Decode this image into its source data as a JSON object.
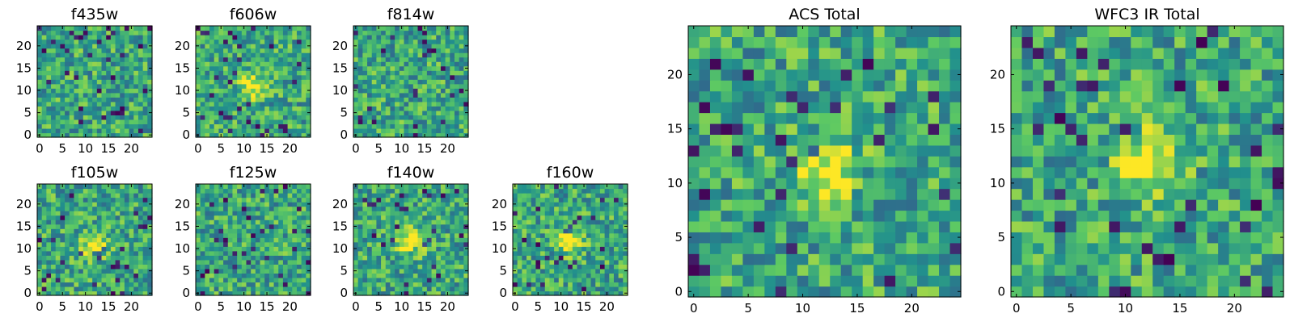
{
  "palette": [
    "#440154",
    "#3b528b",
    "#21908d",
    "#5dc963",
    "#fde725"
  ],
  "chart_data": [
    {
      "type": "heatmap",
      "title": "f435w",
      "x_ticks": [
        0,
        5,
        10,
        15,
        20
      ],
      "y_ticks": [
        0,
        5,
        10,
        15,
        20
      ],
      "xlim": [
        -0.5,
        24.5
      ],
      "ylim": [
        -0.5,
        24.5
      ],
      "grid": false,
      "grid_size": 25,
      "blob": null
    },
    {
      "type": "heatmap",
      "title": "f606w",
      "x_ticks": [
        0,
        5,
        10,
        15,
        20
      ],
      "y_ticks": [
        0,
        5,
        10,
        15,
        20
      ],
      "xlim": [
        -0.5,
        24.5
      ],
      "ylim": [
        -0.5,
        24.5
      ],
      "grid": false,
      "grid_size": 25,
      "blob": [
        12,
        11
      ]
    },
    {
      "type": "heatmap",
      "title": "f814w",
      "x_ticks": [
        0,
        5,
        10,
        15,
        20
      ],
      "y_ticks": [
        0,
        5,
        10,
        15,
        20
      ],
      "xlim": [
        -0.5,
        24.5
      ],
      "ylim": [
        -0.5,
        24.5
      ],
      "grid": false,
      "grid_size": 25,
      "blob": null
    },
    {
      "type": "heatmap",
      "title": "f105w",
      "x_ticks": [
        0,
        5,
        10,
        15,
        20
      ],
      "y_ticks": [
        0,
        5,
        10,
        15,
        20
      ],
      "xlim": [
        -0.5,
        24.5
      ],
      "ylim": [
        -0.5,
        24.5
      ],
      "grid": false,
      "grid_size": 25,
      "blob": [
        12,
        11
      ]
    },
    {
      "type": "heatmap",
      "title": "f125w",
      "x_ticks": [
        0,
        5,
        10,
        15,
        20
      ],
      "y_ticks": [
        0,
        5,
        10,
        15,
        20
      ],
      "xlim": [
        -0.5,
        24.5
      ],
      "ylim": [
        -0.5,
        24.5
      ],
      "grid": false,
      "grid_size": 25,
      "blob": null
    },
    {
      "type": "heatmap",
      "title": "f140w",
      "x_ticks": [
        0,
        5,
        10,
        15,
        20
      ],
      "y_ticks": [
        0,
        5,
        10,
        15,
        20
      ],
      "xlim": [
        -0.5,
        24.5
      ],
      "ylim": [
        -0.5,
        24.5
      ],
      "grid": false,
      "grid_size": 25,
      "blob": [
        12,
        12
      ]
    },
    {
      "type": "heatmap",
      "title": "f160w",
      "x_ticks": [
        0,
        5,
        10,
        15,
        20
      ],
      "y_ticks": [
        0,
        5,
        10,
        15,
        20
      ],
      "xlim": [
        -0.5,
        24.5
      ],
      "ylim": [
        -0.5,
        24.5
      ],
      "grid": false,
      "grid_size": 25,
      "blob": [
        12,
        12
      ]
    },
    {
      "type": "heatmap",
      "title": "ACS Total",
      "x_ticks": [
        0,
        5,
        10,
        15,
        20
      ],
      "y_ticks": [
        0,
        5,
        10,
        15,
        20
      ],
      "xlim": [
        -0.5,
        24.5
      ],
      "ylim": [
        -0.5,
        24.5
      ],
      "grid": false,
      "grid_size": 25,
      "blob": [
        12,
        11
      ]
    },
    {
      "type": "heatmap",
      "title": "WFC3 IR Total",
      "x_ticks": [
        0,
        5,
        10,
        15,
        20
      ],
      "y_ticks": [
        0,
        5,
        10,
        15,
        20
      ],
      "xlim": [
        -0.5,
        24.5
      ],
      "ylim": [
        -0.5,
        24.5
      ],
      "grid": false,
      "grid_size": 25,
      "blob": [
        12,
        12
      ]
    }
  ]
}
